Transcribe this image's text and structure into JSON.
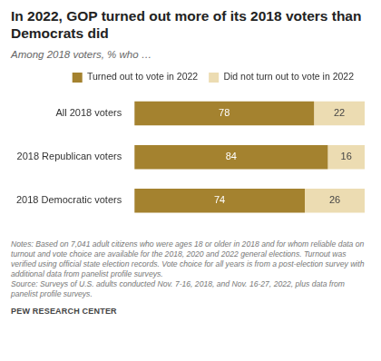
{
  "chart_data": {
    "type": "bar",
    "title": "In 2022, GOP turned out more of its 2018 voters than Democrats did",
    "subtitle": "Among 2018 voters, % who …",
    "orientation": "horizontal",
    "stacked": true,
    "data_labels": true,
    "legend": "top",
    "grid": false,
    "tick_labels": "y",
    "categories": [
      "All 2018 voters",
      "2018 Republican voters",
      "2018 Democratic voters"
    ],
    "xlim": [
      0,
      100
    ],
    "series": [
      {
        "name": "Turned out to vote in 2022",
        "color": "#a4822f",
        "values": [
          78,
          84,
          74
        ]
      },
      {
        "name": "Did not turn out to vote in 2022",
        "color": "#ecdcb2",
        "values": [
          22,
          16,
          26
        ]
      }
    ],
    "notes": [
      "Notes: Based on 7,041 adult citizens who were ages 18 or older in 2018 and for whom reliable data on turnout and vote choice are available for the 2018, 2020 and 2022 general elections. Turnout was verified using official state election records. Vote choice for all years is from a post-election survey with additional data from panelist profile surveys.",
      "Source: Surveys of U.S. adults conducted Nov. 7-16, 2018, and Nov. 16-27, 2022, plus data from panelist profile surveys."
    ],
    "source": "PEW RESEARCH CENTER"
  }
}
